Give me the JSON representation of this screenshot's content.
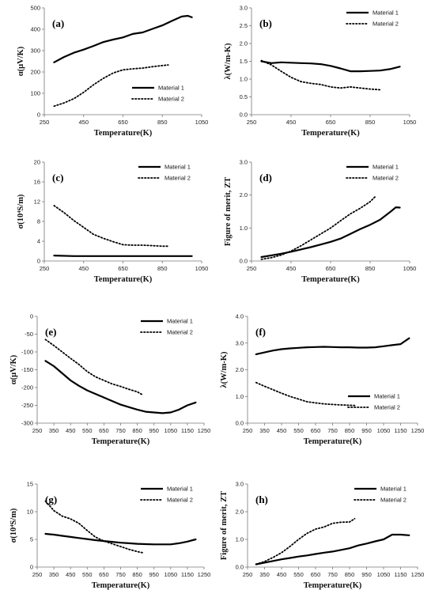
{
  "chart_data": [
    {
      "type": "line",
      "panel_label": "(a)",
      "xlabel": "Temperature(K)",
      "ylabel": "α(μV/K)",
      "xlim": [
        250,
        1050
      ],
      "ylim": [
        0,
        500
      ],
      "xticks": [
        250,
        450,
        650,
        850,
        1050
      ],
      "yticks": [
        0,
        100,
        200,
        300,
        400,
        500
      ],
      "legend": "bottom-right",
      "series": [
        {
          "name": "Material 1",
          "style": "solid",
          "x": [
            300,
            350,
            400,
            450,
            500,
            550,
            600,
            650,
            700,
            750,
            800,
            850,
            900,
            950,
            980,
            1000
          ],
          "y": [
            245,
            270,
            290,
            305,
            322,
            340,
            352,
            362,
            378,
            385,
            402,
            418,
            440,
            460,
            463,
            456
          ]
        },
        {
          "name": "Material 2",
          "style": "dotted",
          "x": [
            300,
            350,
            400,
            450,
            500,
            550,
            600,
            650,
            700,
            750,
            800,
            850,
            880
          ],
          "y": [
            40,
            55,
            75,
            105,
            140,
            170,
            195,
            210,
            215,
            218,
            225,
            230,
            233
          ]
        }
      ]
    },
    {
      "type": "line",
      "panel_label": "(b)",
      "xlabel": "Temperature(K)",
      "ylabel": "λ(W/m-K)",
      "xlim": [
        250,
        1050
      ],
      "ylim": [
        0,
        3
      ],
      "xticks": [
        250,
        450,
        650,
        850,
        1050
      ],
      "yticks": [
        "0.0",
        "0.5",
        "1.0",
        "1.5",
        "2.0",
        "2.5",
        "3.0"
      ],
      "legend": "top-right",
      "series": [
        {
          "name": "Material 1",
          "style": "solid",
          "x": [
            300,
            350,
            400,
            450,
            500,
            550,
            600,
            650,
            700,
            750,
            800,
            850,
            900,
            950,
            1000
          ],
          "y": [
            1.5,
            1.45,
            1.47,
            1.46,
            1.45,
            1.44,
            1.42,
            1.37,
            1.3,
            1.22,
            1.22,
            1.23,
            1.24,
            1.28,
            1.35
          ]
        },
        {
          "name": "Material 2",
          "style": "dotted",
          "x": [
            300,
            350,
            400,
            450,
            500,
            550,
            600,
            650,
            700,
            750,
            800,
            850,
            900
          ],
          "y": [
            1.52,
            1.4,
            1.22,
            1.05,
            0.93,
            0.88,
            0.85,
            0.78,
            0.75,
            0.78,
            0.75,
            0.72,
            0.7
          ]
        }
      ]
    },
    {
      "type": "line",
      "panel_label": "(c)",
      "xlabel": "Temperature(K)",
      "ylabel": "σ(10⁴S/m)",
      "xlim": [
        250,
        1050
      ],
      "ylim": [
        0,
        20
      ],
      "xticks": [
        250,
        450,
        650,
        850,
        1050
      ],
      "yticks": [
        0,
        4,
        8,
        12,
        16,
        20
      ],
      "legend": "top-right",
      "series": [
        {
          "name": "Material 1",
          "style": "solid",
          "x": [
            300,
            400,
            500,
            600,
            700,
            800,
            900,
            1000
          ],
          "y": [
            1.1,
            1.0,
            1.0,
            1.0,
            1.0,
            1.0,
            1.0,
            1.0
          ]
        },
        {
          "name": "Material 2",
          "style": "dotted",
          "x": [
            300,
            350,
            400,
            450,
            500,
            550,
            600,
            650,
            700,
            750,
            800,
            850,
            880
          ],
          "y": [
            11.2,
            9.8,
            8.2,
            6.8,
            5.4,
            4.6,
            3.9,
            3.3,
            3.2,
            3.2,
            3.1,
            3.0,
            3.0
          ]
        }
      ]
    },
    {
      "type": "line",
      "panel_label": "(d)",
      "xlabel": "Temperature(K)",
      "ylabel": "Figure of merit, ZT",
      "xlim": [
        250,
        1050
      ],
      "ylim": [
        0,
        3
      ],
      "xticks": [
        250,
        450,
        650,
        850,
        1050
      ],
      "yticks": [
        "0.0",
        "1.0",
        "2.0",
        "3.0"
      ],
      "legend": "top-right",
      "series": [
        {
          "name": "Material 1",
          "style": "solid",
          "x": [
            300,
            350,
            400,
            450,
            500,
            550,
            600,
            650,
            700,
            750,
            800,
            850,
            900,
            950,
            980,
            1000
          ],
          "y": [
            0.12,
            0.17,
            0.22,
            0.28,
            0.35,
            0.42,
            0.5,
            0.58,
            0.68,
            0.82,
            0.97,
            1.1,
            1.25,
            1.48,
            1.63,
            1.62
          ]
        },
        {
          "name": "Material 2",
          "style": "dotted",
          "x": [
            300,
            350,
            400,
            450,
            500,
            550,
            600,
            650,
            700,
            750,
            800,
            850,
            880
          ],
          "y": [
            0.05,
            0.1,
            0.18,
            0.3,
            0.46,
            0.64,
            0.82,
            1.0,
            1.22,
            1.43,
            1.6,
            1.8,
            1.98
          ]
        }
      ]
    },
    {
      "type": "line",
      "panel_label": "(e)",
      "xlabel": "Temperature(K)",
      "ylabel": "α(μV/K)",
      "xlim": [
        250,
        1250
      ],
      "ylim": [
        -300,
        0
      ],
      "xticks": [
        250,
        350,
        450,
        550,
        650,
        750,
        850,
        950,
        1050,
        1150,
        1250
      ],
      "yticks": [
        -300,
        -250,
        -200,
        -150,
        -100,
        -50,
        0
      ],
      "legend": "top-right",
      "series": [
        {
          "name": "Material 1",
          "style": "solid",
          "x": [
            300,
            350,
            400,
            450,
            500,
            550,
            600,
            650,
            700,
            750,
            800,
            850,
            900,
            950,
            1000,
            1050,
            1100,
            1150,
            1200
          ],
          "y": [
            -125,
            -140,
            -160,
            -180,
            -195,
            -208,
            -218,
            -228,
            -238,
            -248,
            -255,
            -262,
            -268,
            -270,
            -272,
            -270,
            -262,
            -250,
            -242
          ]
        },
        {
          "name": "Material 2",
          "style": "dotted",
          "x": [
            300,
            350,
            400,
            450,
            500,
            550,
            600,
            650,
            700,
            750,
            800,
            850,
            880
          ],
          "y": [
            -65,
            -82,
            -100,
            -118,
            -135,
            -155,
            -170,
            -180,
            -190,
            -197,
            -205,
            -212,
            -220
          ]
        }
      ]
    },
    {
      "type": "line",
      "panel_label": "(f)",
      "xlabel": "Temperature(K)",
      "ylabel": "λ(W/m-K)",
      "xlim": [
        250,
        1250
      ],
      "ylim": [
        0,
        4
      ],
      "xticks": [
        250,
        350,
        450,
        550,
        650,
        750,
        850,
        950,
        1050,
        1150,
        1250
      ],
      "yticks": [
        "0.0",
        "1.0",
        "2.0",
        "3.0",
        "4.0"
      ],
      "legend": "bottom-right",
      "series": [
        {
          "name": "Material 1",
          "style": "solid",
          "x": [
            300,
            350,
            400,
            450,
            500,
            550,
            600,
            650,
            700,
            750,
            800,
            850,
            900,
            950,
            1000,
            1050,
            1100,
            1150,
            1200
          ],
          "y": [
            2.58,
            2.65,
            2.72,
            2.77,
            2.8,
            2.82,
            2.84,
            2.85,
            2.86,
            2.85,
            2.84,
            2.84,
            2.83,
            2.83,
            2.84,
            2.88,
            2.92,
            2.96,
            3.18
          ]
        },
        {
          "name": "Material 2",
          "style": "dotted",
          "x": [
            300,
            350,
            400,
            450,
            500,
            550,
            600,
            650,
            700,
            750,
            800,
            850,
            880
          ],
          "y": [
            1.52,
            1.38,
            1.25,
            1.12,
            1.0,
            0.9,
            0.8,
            0.76,
            0.72,
            0.7,
            0.68,
            0.67,
            0.66
          ]
        }
      ]
    },
    {
      "type": "line",
      "panel_label": "(g)",
      "xlabel": "Temperature(K)",
      "ylabel": "σ(10⁴S/m)",
      "xlim": [
        250,
        1250
      ],
      "ylim": [
        0,
        15
      ],
      "xticks": [
        250,
        350,
        450,
        550,
        650,
        750,
        850,
        950,
        1050,
        1150,
        1250
      ],
      "yticks": [
        0,
        5,
        10,
        15
      ],
      "legend": "top-right",
      "series": [
        {
          "name": "Material 1",
          "style": "solid",
          "x": [
            300,
            350,
            400,
            450,
            500,
            550,
            600,
            650,
            700,
            750,
            800,
            850,
            900,
            950,
            1000,
            1050,
            1100,
            1150,
            1200
          ],
          "y": [
            6.0,
            5.85,
            5.65,
            5.45,
            5.25,
            5.05,
            4.85,
            4.7,
            4.55,
            4.4,
            4.3,
            4.2,
            4.15,
            4.1,
            4.1,
            4.1,
            4.3,
            4.6,
            5.0
          ]
        },
        {
          "name": "Material 2",
          "style": "dotted",
          "x": [
            300,
            350,
            400,
            450,
            500,
            550,
            600,
            650,
            700,
            750,
            800,
            850,
            880
          ],
          "y": [
            11.9,
            10.2,
            9.2,
            8.7,
            7.9,
            6.6,
            5.4,
            4.7,
            4.2,
            3.7,
            3.2,
            2.8,
            2.6
          ]
        }
      ]
    },
    {
      "type": "line",
      "panel_label": "(h)",
      "xlabel": "Temperature(K)",
      "ylabel": "Figure of merit, ZT",
      "xlim": [
        250,
        1250
      ],
      "ylim": [
        0,
        3
      ],
      "xticks": [
        250,
        350,
        450,
        550,
        650,
        750,
        850,
        950,
        1050,
        1150,
        1250
      ],
      "yticks": [
        "0.0",
        "1.0",
        "2.0",
        "3.0"
      ],
      "legend": "top-right",
      "series": [
        {
          "name": "Material 1",
          "style": "solid",
          "x": [
            300,
            350,
            400,
            450,
            500,
            550,
            600,
            650,
            700,
            750,
            800,
            850,
            900,
            950,
            1000,
            1050,
            1100,
            1150,
            1200
          ],
          "y": [
            0.1,
            0.16,
            0.22,
            0.28,
            0.33,
            0.38,
            0.42,
            0.47,
            0.52,
            0.56,
            0.62,
            0.68,
            0.78,
            0.85,
            0.93,
            1.0,
            1.17,
            1.17,
            1.15
          ]
        },
        {
          "name": "Material 2",
          "style": "dotted",
          "x": [
            300,
            350,
            400,
            450,
            500,
            550,
            600,
            650,
            700,
            750,
            800,
            850,
            880
          ],
          "y": [
            0.1,
            0.2,
            0.35,
            0.52,
            0.75,
            1.0,
            1.22,
            1.37,
            1.45,
            1.58,
            1.62,
            1.63,
            1.75
          ]
        }
      ]
    }
  ]
}
